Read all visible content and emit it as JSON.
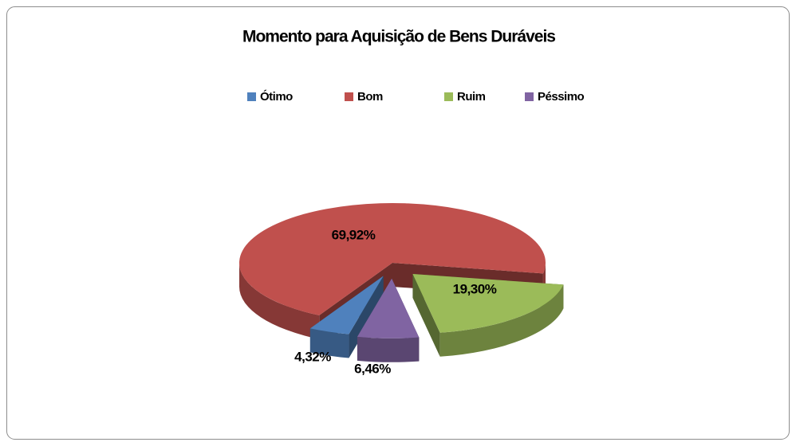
{
  "chart_data": {
    "type": "pie",
    "title": "Momento para Aquisição de Bens Duráveis",
    "categories": [
      "Ótimo",
      "Bom",
      "Ruim",
      "Péssimo"
    ],
    "values": [
      4.32,
      69.92,
      19.3,
      6.46
    ],
    "value_labels": [
      "4,32%",
      "69,92%",
      "19,30%",
      "6,46%"
    ],
    "colors": [
      "#4f81bd",
      "#c0504d",
      "#9bbb59",
      "#8064a2"
    ],
    "legend": "top"
  }
}
